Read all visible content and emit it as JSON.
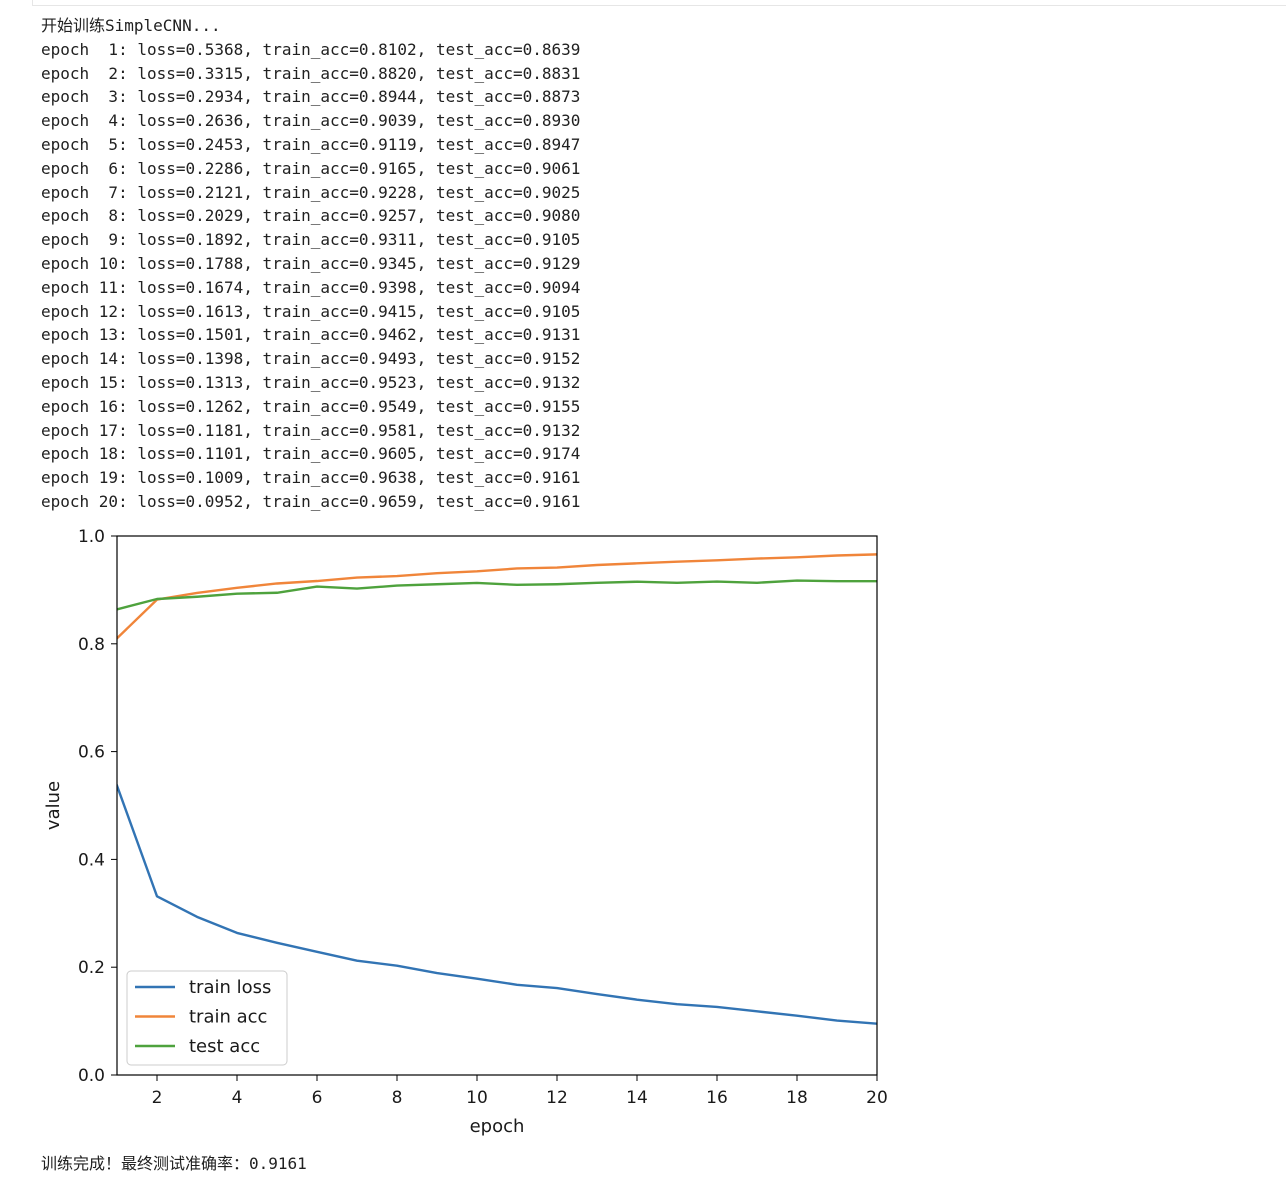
{
  "log": {
    "header": "开始训练SimpleCNN...",
    "lines": [
      "epoch  1: loss=0.5368, train_acc=0.8102, test_acc=0.8639",
      "epoch  2: loss=0.3315, train_acc=0.8820, test_acc=0.8831",
      "epoch  3: loss=0.2934, train_acc=0.8944, test_acc=0.8873",
      "epoch  4: loss=0.2636, train_acc=0.9039, test_acc=0.8930",
      "epoch  5: loss=0.2453, train_acc=0.9119, test_acc=0.8947",
      "epoch  6: loss=0.2286, train_acc=0.9165, test_acc=0.9061",
      "epoch  7: loss=0.2121, train_acc=0.9228, test_acc=0.9025",
      "epoch  8: loss=0.2029, train_acc=0.9257, test_acc=0.9080",
      "epoch  9: loss=0.1892, train_acc=0.9311, test_acc=0.9105",
      "epoch 10: loss=0.1788, train_acc=0.9345, test_acc=0.9129",
      "epoch 11: loss=0.1674, train_acc=0.9398, test_acc=0.9094",
      "epoch 12: loss=0.1613, train_acc=0.9415, test_acc=0.9105",
      "epoch 13: loss=0.1501, train_acc=0.9462, test_acc=0.9131",
      "epoch 14: loss=0.1398, train_acc=0.9493, test_acc=0.9152",
      "epoch 15: loss=0.1313, train_acc=0.9523, test_acc=0.9132",
      "epoch 16: loss=0.1262, train_acc=0.9549, test_acc=0.9155",
      "epoch 17: loss=0.1181, train_acc=0.9581, test_acc=0.9132",
      "epoch 18: loss=0.1101, train_acc=0.9605, test_acc=0.9174",
      "epoch 19: loss=0.1009, train_acc=0.9638, test_acc=0.9161",
      "epoch 20: loss=0.0952, train_acc=0.9659, test_acc=0.9161"
    ],
    "footer": "训练完成！最终测试准确率：0.9161"
  },
  "chart_data": {
    "type": "line",
    "title": "",
    "xlabel": "epoch",
    "ylabel": "value",
    "xlim": [
      1,
      20
    ],
    "ylim": [
      0.0,
      1.0
    ],
    "xticks": [
      2,
      4,
      6,
      8,
      10,
      12,
      14,
      16,
      18,
      20
    ],
    "yticks": [
      0.0,
      0.2,
      0.4,
      0.6,
      0.8,
      1.0
    ],
    "ytick_labels": [
      "0.0",
      "0.2",
      "0.4",
      "0.6",
      "0.8",
      "1.0"
    ],
    "grid": false,
    "legend_position": "lower-left",
    "x": [
      1,
      2,
      3,
      4,
      5,
      6,
      7,
      8,
      9,
      10,
      11,
      12,
      13,
      14,
      15,
      16,
      17,
      18,
      19,
      20
    ],
    "series": [
      {
        "name": "train loss",
        "color": "#3274b4",
        "values": [
          0.5368,
          0.3315,
          0.2934,
          0.2636,
          0.2453,
          0.2286,
          0.2121,
          0.2029,
          0.1892,
          0.1788,
          0.1674,
          0.1613,
          0.1501,
          0.1398,
          0.1313,
          0.1262,
          0.1181,
          0.1101,
          0.1009,
          0.0952
        ]
      },
      {
        "name": "train acc",
        "color": "#f0853a",
        "values": [
          0.8102,
          0.882,
          0.8944,
          0.9039,
          0.9119,
          0.9165,
          0.9228,
          0.9257,
          0.9311,
          0.9345,
          0.9398,
          0.9415,
          0.9462,
          0.9493,
          0.9523,
          0.9549,
          0.9581,
          0.9605,
          0.9638,
          0.9659
        ]
      },
      {
        "name": "test acc",
        "color": "#4ea23d",
        "values": [
          0.8639,
          0.8831,
          0.8873,
          0.893,
          0.8947,
          0.9061,
          0.9025,
          0.908,
          0.9105,
          0.9129,
          0.9094,
          0.9105,
          0.9131,
          0.9152,
          0.9132,
          0.9155,
          0.9132,
          0.9174,
          0.9161,
          0.9161
        ]
      }
    ]
  }
}
